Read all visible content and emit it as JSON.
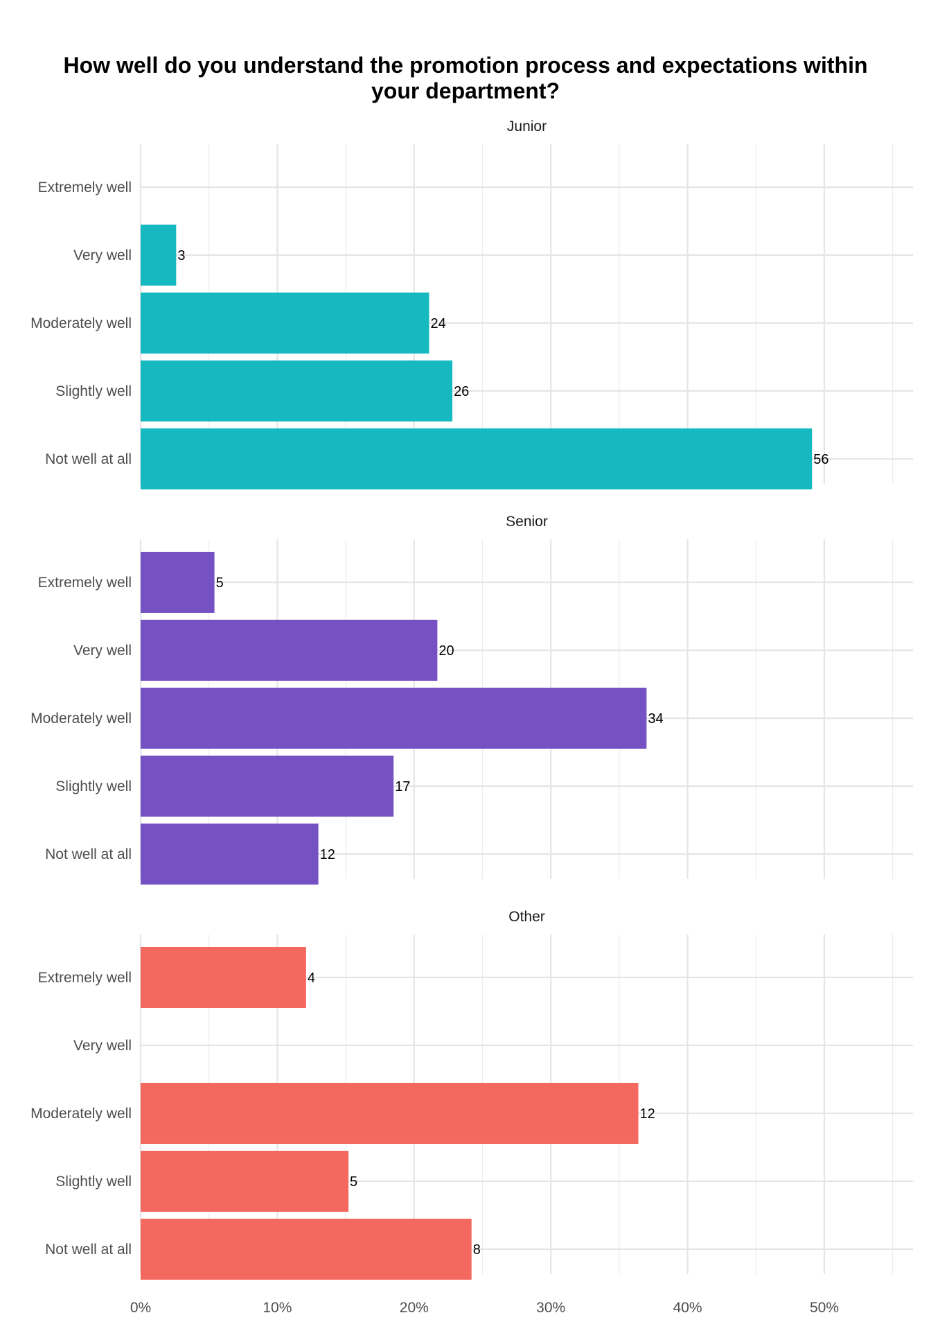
{
  "chart_data": {
    "type": "bar",
    "orientation": "horizontal",
    "title": "How well do you understand the promotion process and expectations within your department?",
    "title_lines": [
      "How well do you understand the promotion process and expectations within",
      "your department?"
    ],
    "xlabel": "",
    "ylabel": "",
    "x_axis": {
      "unit": "percent",
      "range": [
        0,
        55.5
      ],
      "ticks": [
        0,
        10,
        20,
        30,
        40,
        50
      ],
      "tick_labels": [
        "0%",
        "10%",
        "20%",
        "30%",
        "40%",
        "50%"
      ]
    },
    "categories": [
      "Extremely well",
      "Very well",
      "Moderately well",
      "Slightly well",
      "Not well at all"
    ],
    "grid": true,
    "legend": "none",
    "panels": [
      {
        "name": "Junior",
        "color": "#17B9C1",
        "percent": [
          0,
          2.6,
          21.1,
          22.8,
          49.1
        ],
        "counts": [
          null,
          3,
          24,
          26,
          56
        ],
        "labels": [
          "",
          "3",
          "24",
          "26",
          "56"
        ]
      },
      {
        "name": "Senior",
        "color": "#7551C3",
        "percent": [
          5.4,
          21.7,
          37.0,
          18.5,
          13.0
        ],
        "counts": [
          5,
          20,
          34,
          17,
          12
        ],
        "labels": [
          "5",
          "20",
          "34",
          "17",
          "12"
        ]
      },
      {
        "name": "Other",
        "color": "#F4695F",
        "percent": [
          12.1,
          0,
          36.4,
          15.2,
          24.2
        ],
        "counts": [
          4,
          null,
          12,
          5,
          8
        ],
        "labels": [
          "4",
          "",
          "12",
          "5",
          "8"
        ]
      }
    ]
  }
}
